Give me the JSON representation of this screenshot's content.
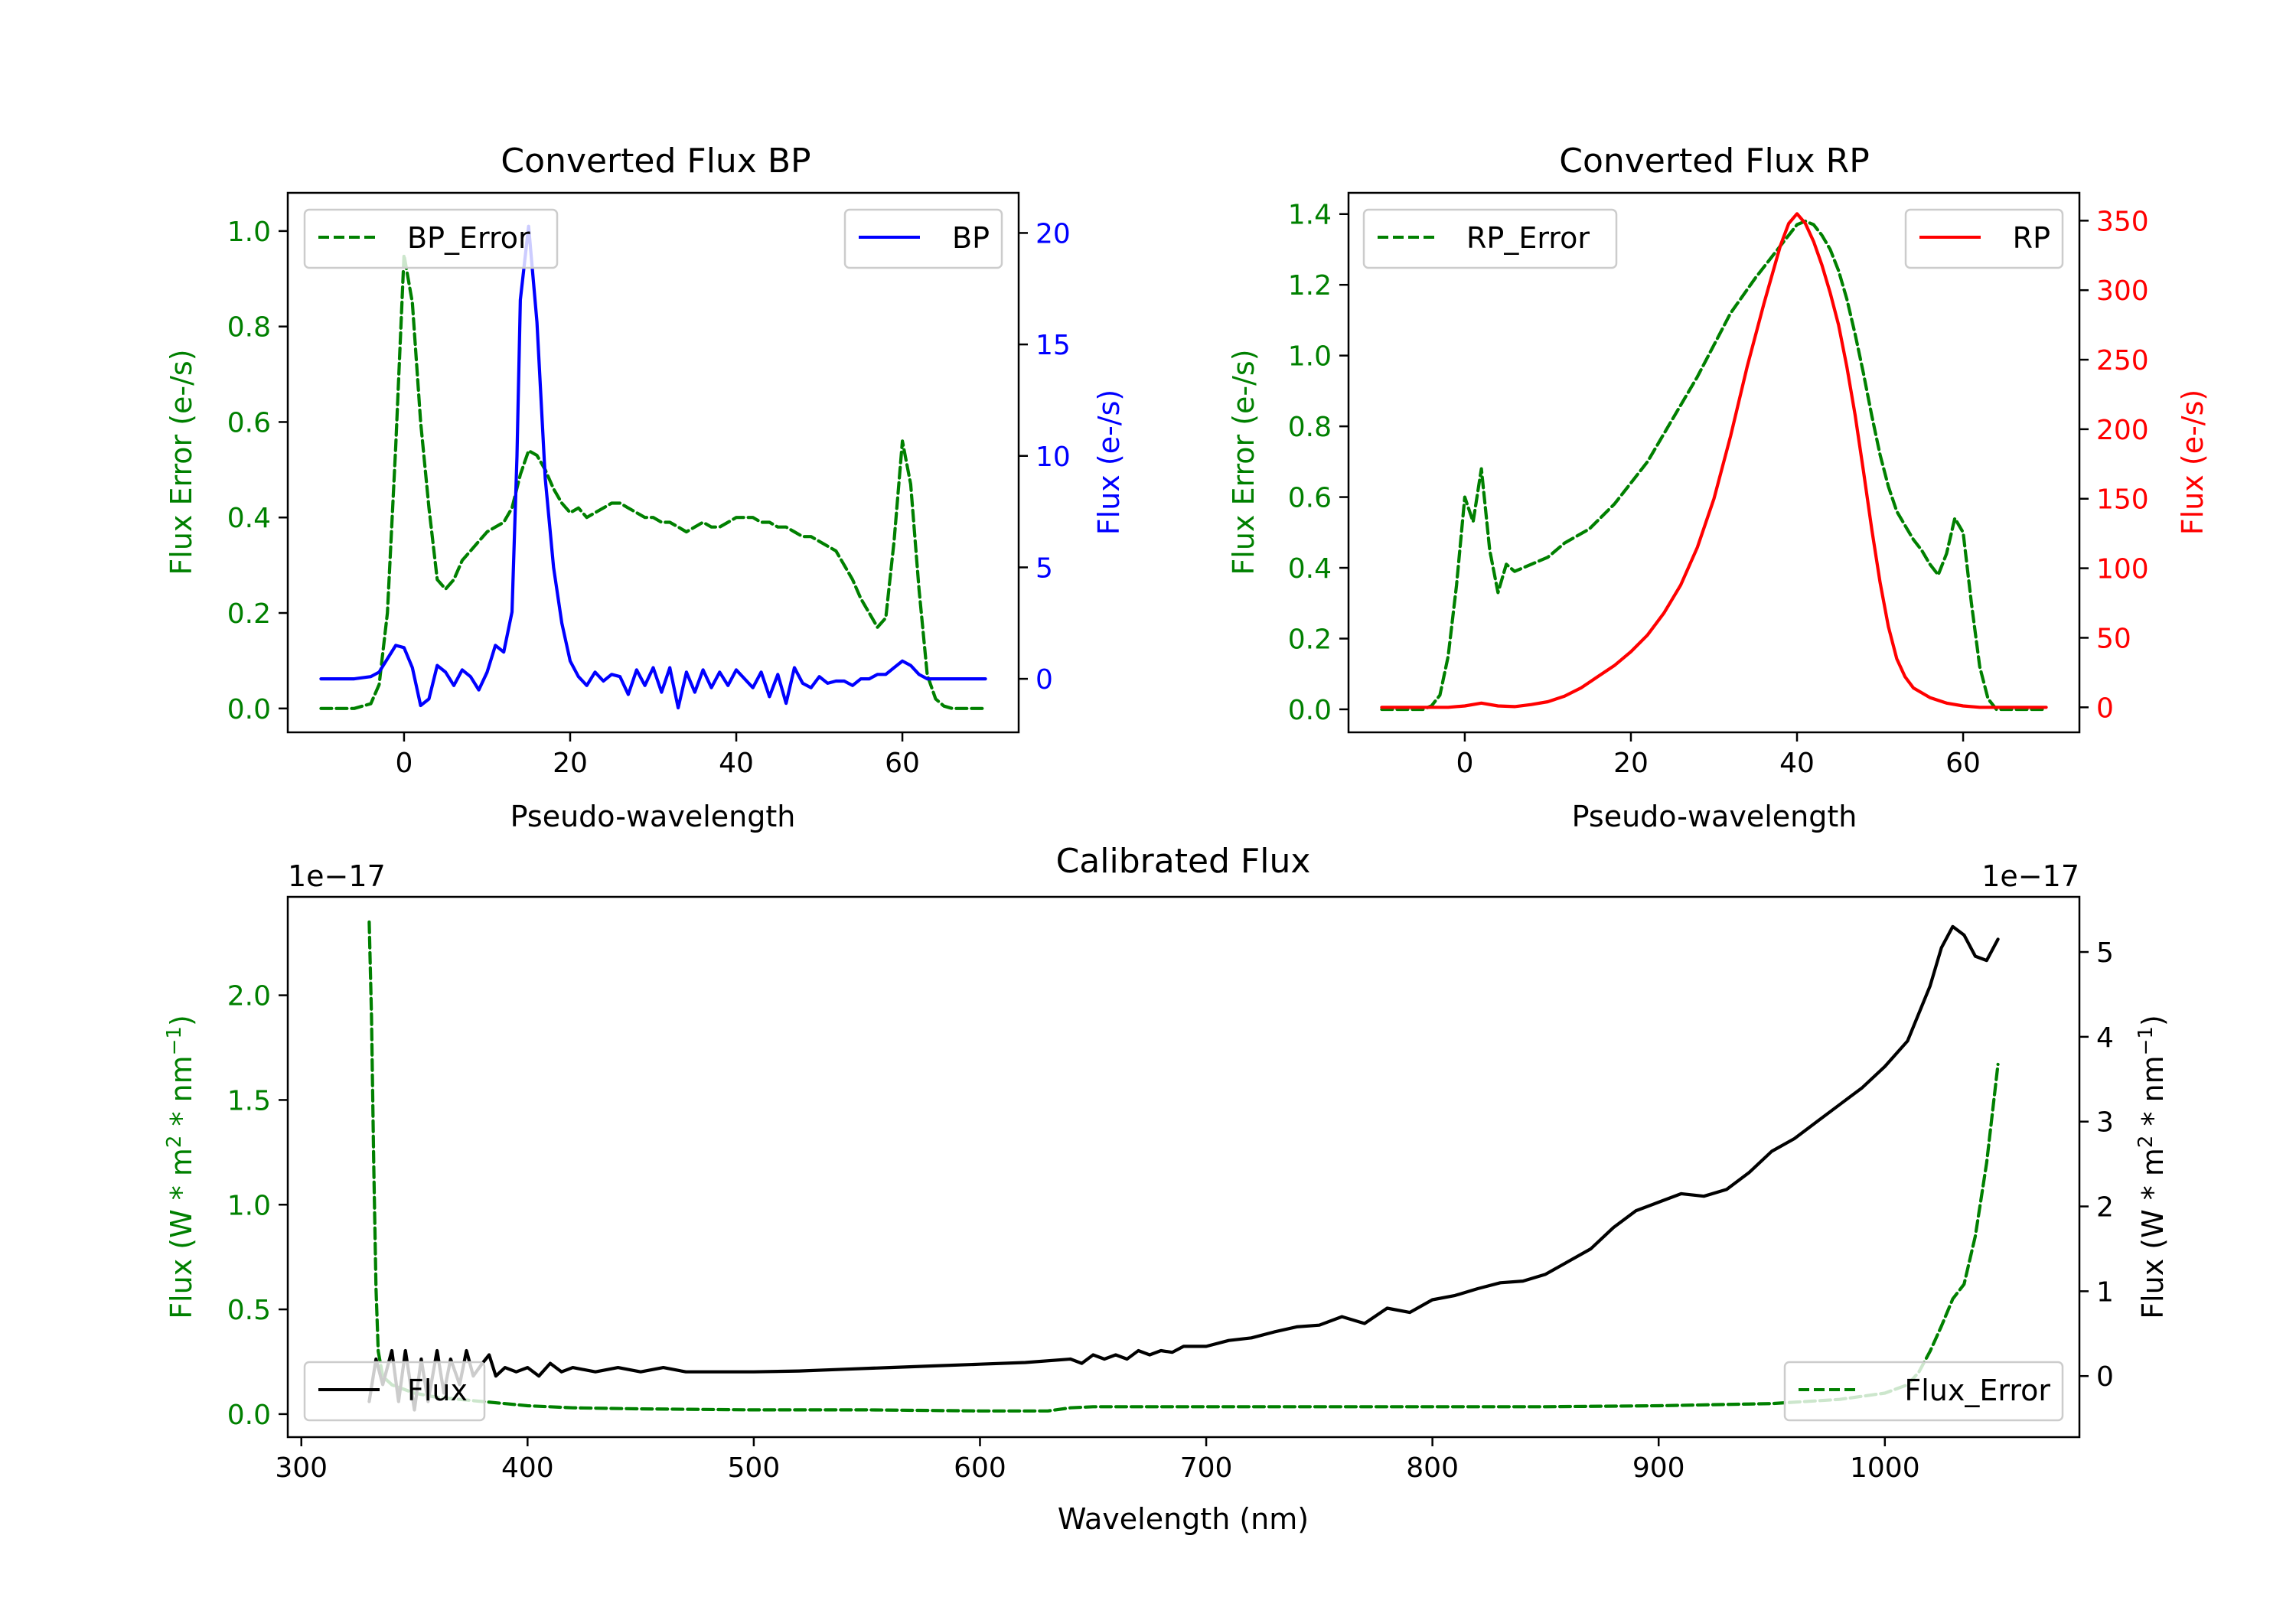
{
  "colors": {
    "error": "#008000",
    "bp": "#0000ff",
    "rp": "#ff0000",
    "flux": "#000000"
  },
  "chart_data": [
    {
      "id": "bp",
      "type": "line",
      "title": "Converted Flux BP",
      "xlabel": "Pseudo-wavelength",
      "ylabel_left": "Flux Error (e-/s)",
      "ylabel_right": "Flux (e-/s)",
      "xlim": [
        -14,
        74
      ],
      "ylim_left": [
        -0.05,
        1.08
      ],
      "ylim_right": [
        -2.4,
        21.8
      ],
      "xticks": [
        0,
        20,
        40,
        60
      ],
      "yticks_left": [
        0.0,
        0.2,
        0.4,
        0.6,
        0.8,
        1.0
      ],
      "yticks_right": [
        0,
        5,
        10,
        15,
        20
      ],
      "legend_left": {
        "label": "BP_Error",
        "position": "upper left"
      },
      "legend_right": {
        "label": "BP",
        "position": "upper right"
      },
      "series": [
        {
          "name": "BP_Error",
          "axis": "left",
          "style": "dashed",
          "color": "#008000",
          "x": [
            -10,
            -6,
            -4,
            -3,
            -2,
            -1,
            0,
            1,
            2,
            3,
            4,
            5,
            6,
            7,
            8,
            9,
            10,
            11,
            12,
            13,
            14,
            15,
            16,
            17,
            18,
            19,
            20,
            21,
            22,
            23,
            24,
            25,
            26,
            27,
            28,
            29,
            30,
            31,
            32,
            33,
            34,
            35,
            36,
            37,
            38,
            39,
            40,
            41,
            42,
            43,
            44,
            45,
            46,
            47,
            48,
            49,
            50,
            51,
            52,
            53,
            54,
            55,
            56,
            57,
            58,
            59,
            60,
            61,
            62,
            63,
            64,
            65,
            66,
            67,
            70
          ],
          "y": [
            0.0,
            0.0,
            0.01,
            0.05,
            0.2,
            0.55,
            0.95,
            0.85,
            0.6,
            0.42,
            0.27,
            0.25,
            0.27,
            0.31,
            0.33,
            0.35,
            0.37,
            0.38,
            0.39,
            0.42,
            0.49,
            0.54,
            0.53,
            0.5,
            0.46,
            0.43,
            0.41,
            0.42,
            0.4,
            0.41,
            0.42,
            0.43,
            0.43,
            0.42,
            0.41,
            0.4,
            0.4,
            0.39,
            0.39,
            0.38,
            0.37,
            0.38,
            0.39,
            0.38,
            0.38,
            0.39,
            0.4,
            0.4,
            0.4,
            0.39,
            0.39,
            0.38,
            0.38,
            0.37,
            0.36,
            0.36,
            0.35,
            0.34,
            0.33,
            0.3,
            0.27,
            0.23,
            0.2,
            0.17,
            0.19,
            0.35,
            0.56,
            0.47,
            0.25,
            0.07,
            0.02,
            0.005,
            0.0,
            0.0,
            0.0
          ]
        },
        {
          "name": "BP",
          "axis": "right",
          "style": "solid",
          "color": "#0000ff",
          "x": [
            -10,
            -6,
            -4,
            -3,
            -2,
            -1,
            0,
            1,
            2,
            3,
            4,
            5,
            6,
            7,
            8,
            9,
            10,
            11,
            12,
            13,
            13.6,
            14,
            15,
            16,
            17,
            18,
            19,
            20,
            21,
            22,
            23,
            24,
            25,
            26,
            27,
            28,
            29,
            30,
            31,
            32,
            33,
            34,
            35,
            36,
            37,
            38,
            39,
            40,
            41,
            42,
            43,
            44,
            45,
            46,
            47,
            48,
            49,
            50,
            51,
            52,
            53,
            54,
            55,
            56,
            57,
            58,
            59,
            60,
            61,
            62,
            63,
            64,
            66,
            70
          ],
          "y": [
            0.0,
            0.0,
            0.1,
            0.3,
            0.9,
            1.5,
            1.4,
            0.5,
            -1.2,
            -0.9,
            0.6,
            0.3,
            -0.3,
            0.4,
            0.1,
            -0.5,
            0.3,
            1.5,
            1.2,
            3.0,
            10.0,
            17.0,
            20.3,
            16.0,
            9.0,
            5.0,
            2.5,
            0.8,
            0.1,
            -0.3,
            0.3,
            -0.1,
            0.2,
            0.1,
            -0.7,
            0.4,
            -0.3,
            0.5,
            -0.6,
            0.5,
            -1.3,
            0.3,
            -0.6,
            0.4,
            -0.4,
            0.3,
            -0.3,
            0.4,
            0.0,
            -0.4,
            0.3,
            -0.8,
            0.2,
            -1.1,
            0.5,
            -0.2,
            -0.4,
            0.1,
            -0.2,
            -0.1,
            -0.1,
            -0.3,
            0.0,
            0.0,
            0.2,
            0.2,
            0.5,
            0.8,
            0.6,
            0.2,
            0.0,
            0.0,
            0.0,
            0.0
          ]
        }
      ]
    },
    {
      "id": "rp",
      "type": "line",
      "title": "Converted Flux RP",
      "xlabel": "Pseudo-wavelength",
      "ylabel_left": "Flux Error (e-/s)",
      "ylabel_right": "Flux (e-/s)",
      "xlim": [
        -14,
        74
      ],
      "ylim_left": [
        -0.065,
        1.46
      ],
      "ylim_right": [
        -18,
        370
      ],
      "xticks": [
        0,
        20,
        40,
        60
      ],
      "yticks_left": [
        0.0,
        0.2,
        0.4,
        0.6,
        0.8,
        1.0,
        1.2,
        1.4
      ],
      "yticks_right": [
        0,
        50,
        100,
        150,
        200,
        250,
        300,
        350
      ],
      "legend_left": {
        "label": "RP_Error",
        "position": "upper left"
      },
      "legend_right": {
        "label": "RP",
        "position": "upper right"
      },
      "series": [
        {
          "name": "RP_Error",
          "axis": "left",
          "style": "dashed",
          "color": "#008000",
          "x": [
            -10,
            -5,
            -4,
            -3,
            -2,
            -1,
            0,
            1,
            2,
            3,
            4,
            5,
            6,
            8,
            10,
            12,
            15,
            18,
            20,
            22,
            25,
            28,
            30,
            32,
            35,
            38,
            40,
            41,
            42,
            43,
            44,
            45,
            46,
            47,
            48,
            49,
            50,
            51,
            52,
            53,
            54,
            55,
            56,
            57,
            58,
            59,
            60,
            61,
            62,
            63,
            64,
            65,
            70
          ],
          "y": [
            0.0,
            0.0,
            0.01,
            0.04,
            0.15,
            0.35,
            0.6,
            0.53,
            0.68,
            0.45,
            0.33,
            0.41,
            0.39,
            0.41,
            0.43,
            0.47,
            0.51,
            0.58,
            0.64,
            0.7,
            0.82,
            0.94,
            1.03,
            1.12,
            1.22,
            1.31,
            1.37,
            1.38,
            1.37,
            1.34,
            1.3,
            1.24,
            1.16,
            1.06,
            0.95,
            0.83,
            0.72,
            0.63,
            0.56,
            0.52,
            0.48,
            0.45,
            0.41,
            0.38,
            0.44,
            0.54,
            0.5,
            0.3,
            0.12,
            0.03,
            0.0,
            0.0,
            0.0
          ]
        },
        {
          "name": "RP",
          "axis": "right",
          "style": "solid",
          "color": "#ff0000",
          "x": [
            -10,
            -2,
            0,
            2,
            4,
            6,
            8,
            10,
            12,
            14,
            16,
            18,
            20,
            22,
            24,
            26,
            28,
            30,
            32,
            34,
            36,
            38,
            39,
            40,
            41,
            42,
            43,
            44,
            45,
            46,
            47,
            48,
            49,
            50,
            51,
            52,
            53,
            54,
            56,
            58,
            60,
            62,
            70
          ],
          "y": [
            0.0,
            0.0,
            1.0,
            3.0,
            1.0,
            0.5,
            2.0,
            4.0,
            8.0,
            14.0,
            22.0,
            30.0,
            40.0,
            52.0,
            68.0,
            88.0,
            115.0,
            150.0,
            195.0,
            245.0,
            290.0,
            332.0,
            348.0,
            355.0,
            348.0,
            335.0,
            318.0,
            298.0,
            275.0,
            245.0,
            210.0,
            170.0,
            128.0,
            90.0,
            58.0,
            35.0,
            22.0,
            14.0,
            7.0,
            3.0,
            1.0,
            0.0,
            0.0
          ]
        }
      ]
    },
    {
      "id": "cal",
      "type": "line",
      "title": "Calibrated Flux",
      "xlabel": "Wavelength (nm)",
      "ylabel_left_parts": [
        "Flux (W * m",
        "2",
        " * nm",
        "−1",
        ")"
      ],
      "ylabel_right_parts": [
        "Flux (W * m",
        "2",
        " * nm",
        "−1",
        ")"
      ],
      "offset_left": "1e−17",
      "offset_right": "1e−17",
      "xlim": [
        294,
        1086
      ],
      "ylim_left": [
        -0.11,
        2.47
      ],
      "ylim_right": [
        -0.72,
        5.65
      ],
      "xticks": [
        300,
        400,
        500,
        600,
        700,
        800,
        900,
        1000
      ],
      "yticks_left": [
        0.0,
        0.5,
        1.0,
        1.5,
        2.0
      ],
      "yticks_right": [
        0,
        1,
        2,
        3,
        4,
        5
      ],
      "legend_left": {
        "label": "Flux",
        "position": "lower left"
      },
      "legend_right": {
        "label": "Flux_Error",
        "position": "lower right"
      },
      "series": [
        {
          "name": "Flux_Error",
          "axis": "left",
          "style": "dashed",
          "color": "#008000",
          "x": [
            330,
            331,
            332,
            333,
            334,
            336,
            340,
            345,
            350,
            360,
            370,
            380,
            390,
            400,
            420,
            450,
            500,
            550,
            600,
            630,
            640,
            650,
            700,
            750,
            800,
            850,
            900,
            950,
            980,
            1000,
            1010,
            1015,
            1020,
            1025,
            1030,
            1035,
            1040,
            1045,
            1050
          ],
          "y": [
            2.35,
            1.9,
            1.2,
            0.6,
            0.3,
            0.18,
            0.14,
            0.12,
            0.1,
            0.08,
            0.07,
            0.06,
            0.05,
            0.04,
            0.03,
            0.025,
            0.02,
            0.02,
            0.015,
            0.015,
            0.03,
            0.035,
            0.035,
            0.035,
            0.035,
            0.035,
            0.04,
            0.05,
            0.07,
            0.1,
            0.14,
            0.2,
            0.3,
            0.42,
            0.55,
            0.62,
            0.85,
            1.2,
            1.67
          ]
        },
        {
          "name": "Flux",
          "axis": "right",
          "style": "solid",
          "color": "#000000",
          "x": [
            330,
            333,
            336,
            340,
            343,
            346,
            350,
            353,
            356,
            360,
            363,
            366,
            370,
            373,
            376,
            380,
            383,
            386,
            390,
            395,
            400,
            405,
            410,
            415,
            420,
            430,
            440,
            450,
            460,
            470,
            480,
            490,
            500,
            520,
            540,
            560,
            580,
            600,
            620,
            640,
            645,
            650,
            655,
            660,
            665,
            670,
            675,
            680,
            685,
            690,
            700,
            710,
            720,
            730,
            740,
            750,
            760,
            770,
            780,
            790,
            800,
            810,
            820,
            830,
            840,
            850,
            860,
            870,
            880,
            890,
            900,
            910,
            920,
            930,
            940,
            950,
            960,
            970,
            980,
            990,
            1000,
            1010,
            1020,
            1025,
            1030,
            1035,
            1040,
            1045,
            1050
          ],
          "y": [
            -0.3,
            0.2,
            -0.1,
            0.3,
            -0.3,
            0.3,
            -0.4,
            0.2,
            -0.3,
            0.3,
            -0.2,
            0.2,
            -0.1,
            0.3,
            0.0,
            0.15,
            0.25,
            0.0,
            0.1,
            0.05,
            0.1,
            0.0,
            0.15,
            0.05,
            0.1,
            0.05,
            0.1,
            0.05,
            0.1,
            0.05,
            0.05,
            0.05,
            0.05,
            0.06,
            0.08,
            0.1,
            0.12,
            0.14,
            0.16,
            0.2,
            0.15,
            0.25,
            0.2,
            0.25,
            0.2,
            0.3,
            0.25,
            0.3,
            0.28,
            0.35,
            0.35,
            0.42,
            0.45,
            0.52,
            0.58,
            0.6,
            0.7,
            0.62,
            0.8,
            0.75,
            0.9,
            0.95,
            1.03,
            1.1,
            1.12,
            1.2,
            1.35,
            1.5,
            1.75,
            1.95,
            2.05,
            2.15,
            2.12,
            2.2,
            2.4,
            2.65,
            2.8,
            3.0,
            3.2,
            3.4,
            3.65,
            3.95,
            4.6,
            5.05,
            5.3,
            5.2,
            4.95,
            4.9,
            5.15
          ]
        }
      ]
    }
  ]
}
